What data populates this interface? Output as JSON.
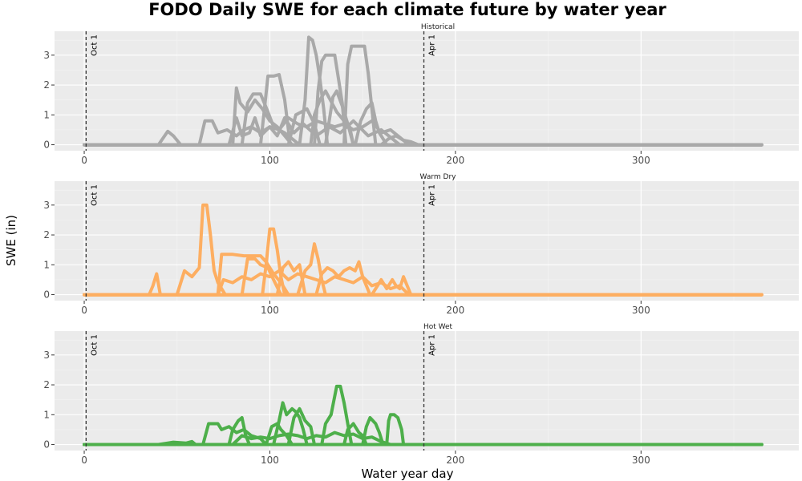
{
  "chart_data": {
    "type": "line",
    "title": "FODO Daily SWE for each climate future by water year",
    "xlabel": "Water year day",
    "ylabel": "SWE (in)",
    "xlim": [
      -16,
      385
    ],
    "ylim": [
      -0.2,
      3.8
    ],
    "x_ticks": [
      0,
      100,
      200,
      300
    ],
    "y_ticks": [
      0,
      1,
      2,
      3
    ],
    "grid": true,
    "vlines": [
      {
        "x": 1,
        "label": "Oct 1"
      },
      {
        "x": 183,
        "label": "Apr 1"
      }
    ],
    "panels": [
      {
        "strip": "Historical",
        "color": "#a9a9a9",
        "series": [
          {
            "x": [
              0,
              40,
              45,
              48,
              52,
              60,
              365
            ],
            "y": [
              0,
              0,
              0.45,
              0.3,
              0,
              0,
              0
            ]
          },
          {
            "x": [
              0,
              62,
              65,
              69,
              72,
              77,
              82,
              86,
              90,
              95,
              100,
              105,
              110,
              115,
              120,
              125,
              130,
              135,
              140,
              145,
              150,
              155,
              160,
              165,
              175,
              365
            ],
            "y": [
              0,
              0,
              0.8,
              0.8,
              0.4,
              0.5,
              0.3,
              0.5,
              0.6,
              0.4,
              0.6,
              0.5,
              0.9,
              0.7,
              0.6,
              0.8,
              0.7,
              0.6,
              0.7,
              0.5,
              0.6,
              0.8,
              0.4,
              0.5,
              0,
              0
            ]
          },
          {
            "x": [
              0,
              78,
              82,
              85,
              89,
              92,
              95,
              100,
              104,
              108,
              113,
              118,
              125,
              132,
              138,
              145,
              153,
              160,
              170,
              365
            ],
            "y": [
              0,
              0,
              0.9,
              0.3,
              0.4,
              0.9,
              0.3,
              0.6,
              0.3,
              0.9,
              0.4,
              0.7,
              0.3,
              0.6,
              0.4,
              0.8,
              0.3,
              0.5,
              0,
              0
            ]
          },
          {
            "x": [
              0,
              80,
              82,
              84,
              88,
              92,
              96,
              100,
              104,
              108,
              112,
              365
            ],
            "y": [
              0,
              0,
              1.9,
              1.4,
              1.1,
              1.5,
              1.2,
              0.8,
              0.6,
              0.3,
              0,
              0
            ]
          },
          {
            "x": [
              0,
              85,
              88,
              91,
              95,
              99,
              102,
              108,
              112,
              116,
              365
            ],
            "y": [
              0,
              0,
              1.4,
              1.7,
              1.7,
              1.1,
              0.6,
              0.4,
              0.2,
              0,
              0
            ]
          },
          {
            "x": [
              0,
              95,
              99,
              102,
              105,
              108,
              111,
              365
            ],
            "y": [
              0,
              0,
              2.3,
              2.3,
              2.35,
              1.5,
              0,
              0
            ]
          },
          {
            "x": [
              0,
              110,
              114,
              117,
              120,
              124,
              127,
              365
            ],
            "y": [
              0,
              0,
              1.0,
              1.1,
              1.2,
              0.7,
              0,
              0
            ]
          },
          {
            "x": [
              0,
              116,
              119,
              121,
              123,
              125,
              127,
              129,
              131,
              365
            ],
            "y": [
              0,
              0,
              1.5,
              3.6,
              3.5,
              3.0,
              2.2,
              1.2,
              0,
              0
            ]
          },
          {
            "x": [
              0,
              122,
              124,
              127,
              130,
              136,
              140,
              143,
              145,
              365
            ],
            "y": [
              0,
              0,
              1.0,
              1.5,
              1.8,
              1.1,
              0.8,
              0.6,
              0,
              0
            ]
          },
          {
            "x": [
              0,
              124,
              126,
              128,
              130,
              135,
              137,
              139,
              141,
              365
            ],
            "y": [
              0,
              0,
              1.8,
              2.8,
              3.0,
              3.0,
              2.2,
              1.4,
              0,
              0
            ]
          },
          {
            "x": [
              0,
              130,
              134,
              136,
              139,
              142,
              145,
              365
            ],
            "y": [
              0,
              0,
              1.6,
              1.8,
              1.3,
              0.7,
              0,
              0
            ]
          },
          {
            "x": [
              0,
              140,
              142,
              144,
              148,
              151,
              153,
              155,
              157,
              365
            ],
            "y": [
              0,
              0,
              2.7,
              3.3,
              3.3,
              3.3,
              2.4,
              1.2,
              0,
              0
            ]
          },
          {
            "x": [
              0,
              146,
              149,
              152,
              155,
              157,
              159,
              161,
              163,
              365
            ],
            "y": [
              0,
              0,
              0.8,
              1.2,
              1.4,
              0.8,
              0.4,
              0.2,
              0,
              0
            ]
          },
          {
            "x": [
              0,
              160,
              164,
              168,
              172,
              176,
              180,
              365
            ],
            "y": [
              0,
              0,
              0.2,
              0.3,
              0.15,
              0.1,
              0,
              0
            ]
          }
        ]
      },
      {
        "strip": "Warm Dry",
        "color": "#fdae61",
        "series": [
          {
            "x": [
              0,
              35,
              37,
              39,
              41,
              365
            ],
            "y": [
              0,
              0,
              0.3,
              0.7,
              0,
              0
            ]
          },
          {
            "x": [
              0,
              50,
              54,
              58,
              62,
              64,
              66,
              68,
              70,
              72,
              76,
              365
            ],
            "y": [
              0,
              0,
              0.8,
              0.6,
              0.9,
              3.0,
              3.0,
              2.0,
              0.8,
              0.4,
              0,
              0
            ]
          },
          {
            "x": [
              0,
              72,
              75,
              80,
              85,
              90,
              95,
              100,
              105,
              110,
              115,
              120,
              125,
              130,
              135,
              140,
              145,
              150,
              155,
              160,
              165,
              170,
              175,
              365
            ],
            "y": [
              0,
              0,
              0.5,
              0.4,
              0.6,
              0.5,
              0.7,
              0.6,
              0.8,
              0.5,
              0.7,
              0.6,
              0.5,
              0.4,
              0.6,
              0.5,
              0.4,
              0.6,
              0.3,
              0.4,
              0.2,
              0.3,
              0,
              0
            ]
          },
          {
            "x": [
              0,
              72,
              74,
              80,
              86,
              90,
              95,
              98,
              102,
              106,
              110,
              365
            ],
            "y": [
              0,
              0,
              1.35,
              1.35,
              1.3,
              1.3,
              1.3,
              1.1,
              0.7,
              0.4,
              0,
              0
            ]
          },
          {
            "x": [
              0,
              85,
              88,
              92,
              95,
              99,
              102,
              106,
              365
            ],
            "y": [
              0,
              0,
              1.2,
              1.2,
              1.0,
              0.9,
              0.5,
              0,
              0
            ]
          },
          {
            "x": [
              0,
              96,
              98,
              100,
              102,
              104,
              106,
              108,
              365
            ],
            "y": [
              0,
              0,
              1.0,
              2.2,
              2.2,
              1.5,
              0.6,
              0,
              0
            ]
          },
          {
            "x": [
              0,
              104,
              107,
              110,
              113,
              116,
              119,
              365
            ],
            "y": [
              0,
              0,
              0.9,
              1.1,
              0.8,
              1.0,
              0,
              0
            ]
          },
          {
            "x": [
              0,
              115,
              119,
              122,
              124,
              126,
              128,
              130,
              365
            ],
            "y": [
              0,
              0,
              0.8,
              1.0,
              1.7,
              1.2,
              0.5,
              0,
              0
            ]
          },
          {
            "x": [
              0,
              125,
              128,
              131,
              134,
              137,
              140,
              143,
              146,
              148,
              150,
              152,
              154,
              365
            ],
            "y": [
              0,
              0,
              0.7,
              0.9,
              0.8,
              0.6,
              0.8,
              0.9,
              0.8,
              1.1,
              0.6,
              0.3,
              0,
              0
            ]
          },
          {
            "x": [
              0,
              155,
              158,
              160,
              163,
              166,
              168,
              170,
              172,
              174,
              176,
              365
            ],
            "y": [
              0,
              0,
              0.3,
              0.5,
              0.2,
              0.5,
              0.3,
              0.2,
              0.6,
              0.3,
              0,
              0
            ]
          }
        ]
      },
      {
        "strip": "Hot Wet",
        "color": "#4daf4a",
        "series": [
          {
            "x": [
              0,
              40,
              45,
              48,
              55,
              58,
              60,
              365
            ],
            "y": [
              0,
              0,
              0.05,
              0.08,
              0.05,
              0.1,
              0,
              0
            ]
          },
          {
            "x": [
              0,
              64,
              67,
              72,
              74,
              78,
              82,
              86,
              90,
              95,
              98,
              365
            ],
            "y": [
              0,
              0,
              0.7,
              0.7,
              0.5,
              0.6,
              0.4,
              0.5,
              0.3,
              0.2,
              0,
              0
            ]
          },
          {
            "x": [
              0,
              78,
              80,
              83,
              85,
              87,
              89,
              365
            ],
            "y": [
              0,
              0,
              0.5,
              0.8,
              0.9,
              0.3,
              0,
              0
            ]
          },
          {
            "x": [
              0,
              80,
              85,
              90,
              95,
              100,
              105,
              110,
              115,
              120,
              125,
              130,
              135,
              140,
              145,
              150,
              155,
              160,
              165,
              365
            ],
            "y": [
              0,
              0,
              0.3,
              0.2,
              0.25,
              0.2,
              0.3,
              0.35,
              0.3,
              0.2,
              0.3,
              0.25,
              0.4,
              0.3,
              0.35,
              0.2,
              0.25,
              0.1,
              0,
              0
            ]
          },
          {
            "x": [
              0,
              98,
              101,
              104,
              106,
              109,
              112,
              365
            ],
            "y": [
              0,
              0,
              0.6,
              0.7,
              0.5,
              0.3,
              0,
              0
            ]
          },
          {
            "x": [
              0,
              102,
              105,
              107,
              109,
              112,
              114,
              116,
              118,
              120,
              365
            ],
            "y": [
              0,
              0,
              0.8,
              1.4,
              1.0,
              1.2,
              1.1,
              0.9,
              0.5,
              0,
              0
            ]
          },
          {
            "x": [
              0,
              110,
              113,
              116,
              119,
              122,
              124,
              365
            ],
            "y": [
              0,
              0,
              0.9,
              1.2,
              0.8,
              0.6,
              0,
              0
            ]
          },
          {
            "x": [
              0,
              128,
              130,
              133,
              136,
              138,
              140,
              142,
              144,
              365
            ],
            "y": [
              0,
              0,
              0.7,
              1.0,
              1.95,
              1.95,
              1.4,
              0.7,
              0,
              0
            ]
          },
          {
            "x": [
              0,
              140,
              142,
              145,
              148,
              150,
              152,
              365
            ],
            "y": [
              0,
              0,
              0.5,
              0.7,
              0.4,
              0.3,
              0,
              0
            ]
          },
          {
            "x": [
              0,
              150,
              152,
              154,
              157,
              159,
              161,
              365
            ],
            "y": [
              0,
              0,
              0.6,
              0.9,
              0.7,
              0.4,
              0,
              0
            ]
          },
          {
            "x": [
              0,
              163,
              164,
              165,
              167,
              169,
              171,
              172,
              365
            ],
            "y": [
              0,
              0,
              0.8,
              1.0,
              1.0,
              0.9,
              0.5,
              0,
              0
            ]
          }
        ]
      }
    ]
  }
}
